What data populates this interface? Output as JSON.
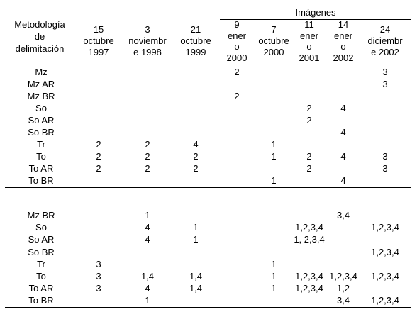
{
  "table": {
    "group_header": "Imágenes",
    "method_header": [
      "Metodología",
      "de",
      "delimitación"
    ],
    "columns": [
      [
        "15",
        "octubre",
        "1997"
      ],
      [
        "3",
        "noviembr",
        "e 1998"
      ],
      [
        "21",
        "octubre",
        "1999"
      ],
      [
        "9",
        "ener",
        "o",
        "2000"
      ],
      [
        "7",
        "octubre",
        "2000"
      ],
      [
        "11",
        "ener",
        "o",
        "2001"
      ],
      [
        "14",
        "ener",
        "o",
        "2002"
      ],
      [
        "24",
        "diciembr",
        "e 2002"
      ]
    ],
    "section1": [
      {
        "label": "Mz",
        "cells": [
          "",
          "",
          "",
          "2",
          "",
          "",
          "",
          "3"
        ]
      },
      {
        "label": "Mz AR",
        "cells": [
          "",
          "",
          "",
          "",
          "",
          "",
          "",
          "3"
        ]
      },
      {
        "label": "Mz BR",
        "cells": [
          "",
          "",
          "",
          "2",
          "",
          "",
          "",
          ""
        ]
      },
      {
        "label": "So",
        "cells": [
          "",
          "",
          "",
          "",
          "",
          "2",
          "4",
          ""
        ]
      },
      {
        "label": "So AR",
        "cells": [
          "",
          "",
          "",
          "",
          "",
          "2",
          "",
          ""
        ]
      },
      {
        "label": "So BR",
        "cells": [
          "",
          "",
          "",
          "",
          "",
          "",
          "4",
          ""
        ]
      },
      {
        "label": "Tr",
        "cells": [
          "2",
          "2",
          "4",
          "",
          "1",
          "",
          "",
          ""
        ]
      },
      {
        "label": "To",
        "cells": [
          "2",
          "2",
          "2",
          "",
          "1",
          "2",
          "4",
          "3"
        ]
      },
      {
        "label": "To AR",
        "cells": [
          "2",
          "2",
          "2",
          "",
          "",
          "2",
          "",
          "3"
        ]
      },
      {
        "label": "To BR",
        "cells": [
          "",
          "",
          "",
          "",
          "1",
          "",
          "4",
          ""
        ]
      }
    ],
    "section2": [
      {
        "label": "Mz BR",
        "cells": [
          "",
          "1",
          "",
          "",
          "",
          "",
          "3,4",
          ""
        ]
      },
      {
        "label": "So",
        "cells": [
          "",
          "4",
          "1",
          "",
          "",
          "1,2,3,4",
          "",
          "1,2,3,4"
        ]
      },
      {
        "label": "So AR",
        "cells": [
          "",
          "4",
          "1",
          "",
          "",
          "1, 2,3,4",
          "",
          ""
        ]
      },
      {
        "label": "So BR",
        "cells": [
          "",
          "",
          "",
          "",
          "",
          "",
          "",
          "1,2,3,4"
        ]
      },
      {
        "label": "Tr",
        "cells": [
          "3",
          "",
          "",
          "",
          "1",
          "",
          "",
          ""
        ]
      },
      {
        "label": "To",
        "cells": [
          "3",
          "1,4",
          "1,4",
          "",
          "1",
          "1,2,3,4",
          "1,2,3,4",
          "1,2,3,4"
        ]
      },
      {
        "label": "To AR",
        "cells": [
          "3",
          "4",
          "1,4",
          "",
          "1",
          "1,2,3,4",
          "1,2",
          ""
        ]
      },
      {
        "label": "To BR",
        "cells": [
          "",
          "1",
          "",
          "",
          "",
          "",
          "3,4",
          "1,2,3,4"
        ]
      }
    ]
  }
}
